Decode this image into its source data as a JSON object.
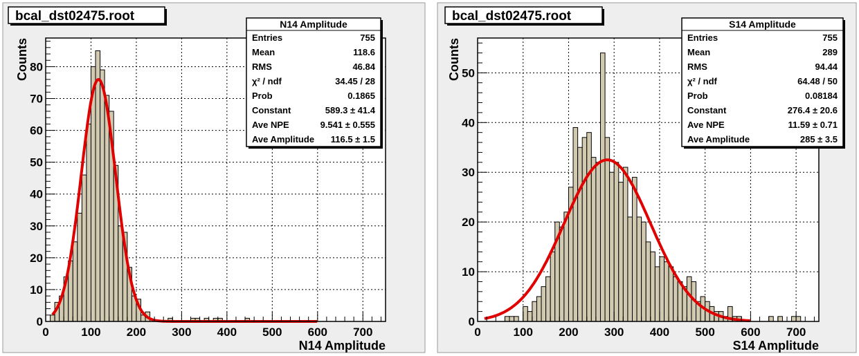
{
  "chart_data": [
    {
      "type": "bar",
      "canvas_title": "bcal_dst02475.root",
      "xlabel": "N14 Amplitude",
      "ylabel": "Counts",
      "xlim": [
        0,
        750
      ],
      "ylim": [
        0,
        89
      ],
      "x_ticks": [
        0,
        100,
        200,
        300,
        400,
        500,
        600,
        700
      ],
      "y_ticks": [
        0,
        10,
        20,
        30,
        40,
        50,
        60,
        70,
        80
      ],
      "grid": true,
      "bin_width": 10,
      "histogram_bins": [
        {
          "x": 0,
          "y": 0
        },
        {
          "x": 10,
          "y": 2
        },
        {
          "x": 20,
          "y": 6
        },
        {
          "x": 30,
          "y": 8
        },
        {
          "x": 40,
          "y": 14
        },
        {
          "x": 50,
          "y": 19
        },
        {
          "x": 60,
          "y": 25
        },
        {
          "x": 70,
          "y": 34
        },
        {
          "x": 80,
          "y": 46
        },
        {
          "x": 90,
          "y": 62
        },
        {
          "x": 100,
          "y": 80
        },
        {
          "x": 110,
          "y": 85
        },
        {
          "x": 120,
          "y": 79
        },
        {
          "x": 130,
          "y": 71
        },
        {
          "x": 140,
          "y": 66
        },
        {
          "x": 150,
          "y": 49
        },
        {
          "x": 160,
          "y": 30
        },
        {
          "x": 170,
          "y": 28
        },
        {
          "x": 180,
          "y": 17
        },
        {
          "x": 190,
          "y": 8
        },
        {
          "x": 200,
          "y": 7
        },
        {
          "x": 210,
          "y": 2
        },
        {
          "x": 220,
          "y": 3
        },
        {
          "x": 230,
          "y": 0
        },
        {
          "x": 270,
          "y": 1
        },
        {
          "x": 320,
          "y": 1
        },
        {
          "x": 330,
          "y": 1
        },
        {
          "x": 350,
          "y": 1
        },
        {
          "x": 370,
          "y": 1
        },
        {
          "x": 380,
          "y": 1
        },
        {
          "x": 440,
          "y": 1
        }
      ],
      "fit": {
        "type": "gaussian",
        "peak": 76,
        "mean": 116.5,
        "sigma": 38,
        "x_range": [
          15,
          600
        ]
      },
      "colors": {
        "hist_fill": "#d2cab0",
        "fit_line": "#e00000",
        "frame_bg": "#eeeeee"
      },
      "stats_box": {
        "title": "N14 Amplitude",
        "rows": [
          {
            "label": "Entries",
            "value": "755"
          },
          {
            "label": "Mean",
            "value": "118.6"
          },
          {
            "label": "RMS",
            "value": "46.84"
          },
          {
            "label": "χ² / ndf",
            "value": "34.45 / 28"
          },
          {
            "label": "Prob",
            "value": "0.1865"
          },
          {
            "label": "Constant",
            "value": "589.3 ±  41.4"
          },
          {
            "label": "Ave NPE",
            "value": "9.541 ±  0.555"
          },
          {
            "label": "Ave Amplitude",
            "value": "116.5 ±  1.5"
          }
        ]
      }
    },
    {
      "type": "bar",
      "canvas_title": "bcal_dst02475.root",
      "xlabel": "S14 Amplitude",
      "ylabel": "Counts",
      "xlim": [
        0,
        750
      ],
      "ylim": [
        0,
        57
      ],
      "x_ticks": [
        0,
        100,
        200,
        300,
        400,
        500,
        600,
        700
      ],
      "y_ticks": [
        0,
        10,
        20,
        30,
        40,
        50
      ],
      "grid": true,
      "bin_width": 10,
      "histogram_bins": [
        {
          "x": 60,
          "y": 1
        },
        {
          "x": 70,
          "y": 1
        },
        {
          "x": 80,
          "y": 1
        },
        {
          "x": 90,
          "y": 0
        },
        {
          "x": 100,
          "y": 3
        },
        {
          "x": 110,
          "y": 2
        },
        {
          "x": 120,
          "y": 4
        },
        {
          "x": 130,
          "y": 5
        },
        {
          "x": 140,
          "y": 7
        },
        {
          "x": 150,
          "y": 9
        },
        {
          "x": 160,
          "y": 14
        },
        {
          "x": 170,
          "y": 20
        },
        {
          "x": 180,
          "y": 19
        },
        {
          "x": 190,
          "y": 22
        },
        {
          "x": 200,
          "y": 27
        },
        {
          "x": 210,
          "y": 39
        },
        {
          "x": 220,
          "y": 35
        },
        {
          "x": 230,
          "y": 37
        },
        {
          "x": 240,
          "y": 38
        },
        {
          "x": 250,
          "y": 33
        },
        {
          "x": 260,
          "y": 32
        },
        {
          "x": 270,
          "y": 54
        },
        {
          "x": 280,
          "y": 37
        },
        {
          "x": 290,
          "y": 30
        },
        {
          "x": 300,
          "y": 32
        },
        {
          "x": 310,
          "y": 28
        },
        {
          "x": 320,
          "y": 31
        },
        {
          "x": 330,
          "y": 21
        },
        {
          "x": 340,
          "y": 29
        },
        {
          "x": 350,
          "y": 21
        },
        {
          "x": 360,
          "y": 20
        },
        {
          "x": 370,
          "y": 16
        },
        {
          "x": 380,
          "y": 14
        },
        {
          "x": 390,
          "y": 11
        },
        {
          "x": 400,
          "y": 13
        },
        {
          "x": 410,
          "y": 12
        },
        {
          "x": 420,
          "y": 11
        },
        {
          "x": 430,
          "y": 9
        },
        {
          "x": 440,
          "y": 8
        },
        {
          "x": 450,
          "y": 7
        },
        {
          "x": 460,
          "y": 9
        },
        {
          "x": 470,
          "y": 8
        },
        {
          "x": 480,
          "y": 4
        },
        {
          "x": 490,
          "y": 5
        },
        {
          "x": 500,
          "y": 4
        },
        {
          "x": 510,
          "y": 3
        },
        {
          "x": 520,
          "y": 2
        },
        {
          "x": 530,
          "y": 2
        },
        {
          "x": 540,
          "y": 1
        },
        {
          "x": 550,
          "y": 3
        },
        {
          "x": 560,
          "y": 1
        },
        {
          "x": 570,
          "y": 1
        },
        {
          "x": 640,
          "y": 1
        },
        {
          "x": 660,
          "y": 1
        },
        {
          "x": 690,
          "y": 1
        },
        {
          "x": 700,
          "y": 1
        }
      ],
      "fit": {
        "type": "gaussian",
        "peak": 32.5,
        "mean": 285,
        "sigma": 95,
        "x_range": [
          15,
          600
        ]
      },
      "colors": {
        "hist_fill": "#d2cab0",
        "fit_line": "#e00000",
        "frame_bg": "#eeeeee"
      },
      "stats_box": {
        "title": "S14 Amplitude",
        "rows": [
          {
            "label": "Entries",
            "value": "755"
          },
          {
            "label": "Mean",
            "value": "289"
          },
          {
            "label": "RMS",
            "value": "94.44"
          },
          {
            "label": "χ² / ndf",
            "value": "64.48 / 50"
          },
          {
            "label": "Prob",
            "value": "0.08184"
          },
          {
            "label": "Constant",
            "value": "276.4 ±  20.6"
          },
          {
            "label": "Ave NPE",
            "value": "11.59 ±  0.71"
          },
          {
            "label": "Ave Amplitude",
            "value": "285 ±  3.5"
          }
        ]
      }
    }
  ]
}
